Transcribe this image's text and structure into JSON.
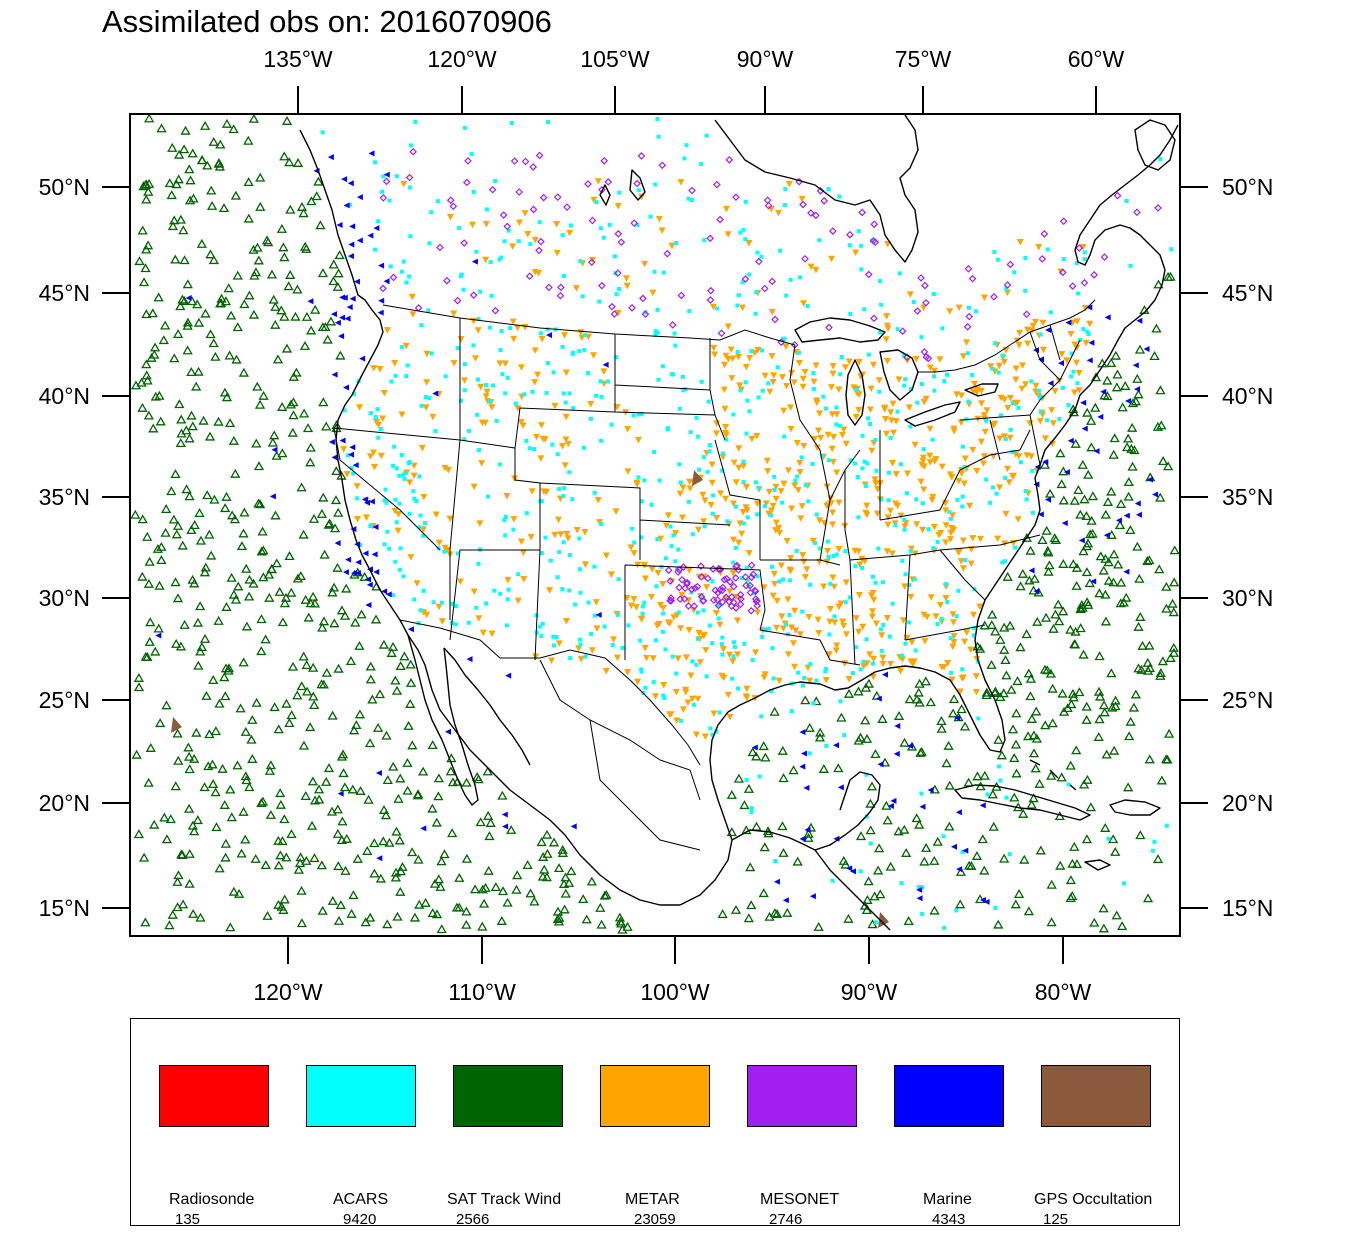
{
  "title": "Assimilated obs on: 2016070906",
  "top_lon_labels": [
    "135°W",
    "120°W",
    "105°W",
    "90°W",
    "75°W",
    "60°W"
  ],
  "bottom_lon_labels": [
    "120°W",
    "110°W",
    "100°W",
    "90°W",
    "80°W"
  ],
  "lat_labels": [
    "50°N",
    "45°N",
    "40°N",
    "35°N",
    "30°N",
    "25°N",
    "20°N",
    "15°N"
  ],
  "legend": [
    {
      "name": "Radiosonde",
      "count": "135",
      "color": "#ff0000"
    },
    {
      "name": "ACARS",
      "count": "9420",
      "color": "#00ffff"
    },
    {
      "name": "SAT Track Wind",
      "count": "2566",
      "color": "#006400"
    },
    {
      "name": "METAR",
      "count": "23059",
      "color": "#ffa500"
    },
    {
      "name": "MESONET",
      "count": "2746",
      "color": "#a020f0"
    },
    {
      "name": "Marine",
      "count": "4343",
      "color": "#0000ff"
    },
    {
      "name": "GPS Occultation",
      "count": "125",
      "color": "#8b5a3c"
    }
  ],
  "colors": {
    "frame": "#000000",
    "coastline": "#000000",
    "background": "#ffffff"
  }
}
